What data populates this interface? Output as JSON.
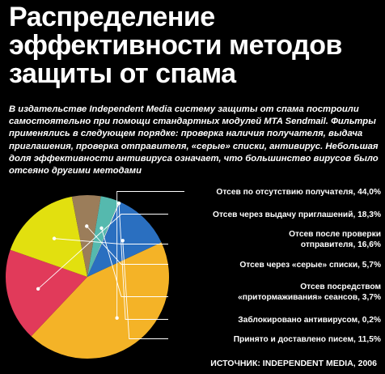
{
  "title_lines": [
    "Распределение",
    "эффективности методов",
    "защиты от спама"
  ],
  "intro": "В издательстве Independent Media систему защиты от спама построили самостоятельно при помощи стандартных модулей MTA Sendmail. Фильтры применялись в следующем порядке: проверка наличия получателя, выдача приглашения, проверка отправителя, «серые» списки, антивирус. Небольшая доля эффективности антивируса означает, что большинство вирусов было отсеяно другими методами",
  "source": "ИСТОЧНИК: INDEPENDENT MEDIA, 2006",
  "chart_data": {
    "type": "pie",
    "unit": "%",
    "slices": [
      {
        "label": "Отсев по отсутствию получателя, 44,0%",
        "label_lines": [
          "Отсев по отсутствию получателя, 44,0%"
        ],
        "value": 44.0,
        "color": "#f4b327"
      },
      {
        "label": "Отсев через выдачу приглашений, 18,3%",
        "label_lines": [
          "Отсев через выдачу приглашений, 18,3%"
        ],
        "value": 18.3,
        "color": "#e13a5a"
      },
      {
        "label": "Отсев после проверки отправителя, 16,6%",
        "label_lines": [
          "Отсев после проверки",
          "отправителя, 16,6%"
        ],
        "value": 16.6,
        "color": "#e2e00f"
      },
      {
        "label": "Отсев через «серые» списки, 5,7%",
        "label_lines": [
          "Отсев через «серые» списки, 5,7%"
        ],
        "value": 5.7,
        "color": "#9b7d5a"
      },
      {
        "label": "Отсев посредством «притормаживания» сеансов, 3,7%",
        "label_lines": [
          "Отсев посредством",
          "«притормаживания» сеансов, 3,7%"
        ],
        "value": 3.7,
        "color": "#55b9ae"
      },
      {
        "label": "Заблокировано антивирусом, 0,2%",
        "label_lines": [
          "Заблокировано антивирусом, 0,2%"
        ],
        "value": 0.2,
        "color": "#ffffff"
      },
      {
        "label": "Принято и доставлено писем, 11,5%",
        "label_lines": [
          "Принято и доставлено писем, 11,5%"
        ],
        "value": 11.5,
        "color": "#2a6fc0"
      }
    ]
  }
}
